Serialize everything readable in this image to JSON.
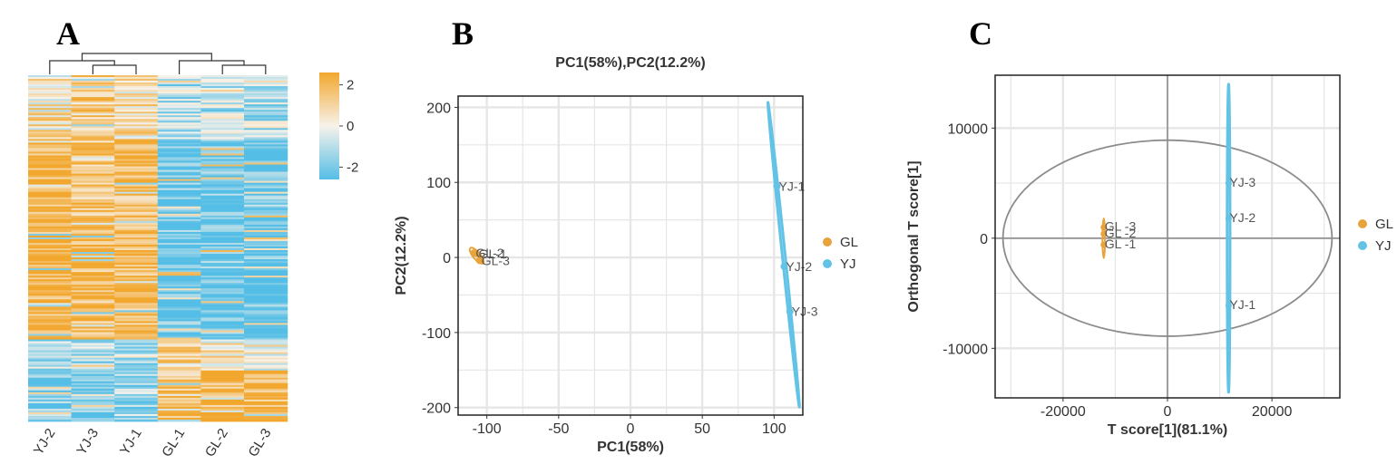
{
  "panels": {
    "a": {
      "letter": "A"
    },
    "b": {
      "letter": "B"
    },
    "c": {
      "letter": "C"
    }
  },
  "colors": {
    "gl": "#E8A33A",
    "yj": "#62C3E6",
    "heat_high": "#F2A72E",
    "heat_mid": "#F7F2EA",
    "heat_low": "#55BEE6",
    "grid": "#e6e6e6",
    "ellipse": "#8c8c8c"
  },
  "chart_data": [
    {
      "type": "heatmap",
      "columns": [
        "YJ-2",
        "YJ-3",
        "YJ-1",
        "GL-1",
        "GL-2",
        "GL-3"
      ],
      "colorbar": {
        "ticks": [
          "2",
          "0",
          "-2"
        ],
        "values": [
          2,
          0,
          -2
        ],
        "range": [
          -2.6,
          2.6
        ]
      },
      "dendrogram": "YJ-2,(YJ-3,YJ-1) | GL-1,(GL-2,GL-3)"
    },
    {
      "type": "scatter",
      "title": "PC1(58%),PC2(12.2%)",
      "xlabel": "PC1(58%)",
      "ylabel": "PC2(12.2%)",
      "xlim": [
        -120,
        120
      ],
      "ylim": [
        -210,
        215
      ],
      "xticks": [
        -100,
        -50,
        0,
        50,
        100
      ],
      "yticks": [
        -200,
        -100,
        0,
        100,
        200
      ],
      "grid": true,
      "legend": "right",
      "series": [
        {
          "name": "GL",
          "points": [
            {
              "label": "GL-1",
              "x": -107,
              "y": 5
            },
            {
              "label": "GL-2",
              "x": -109,
              "y": 6
            },
            {
              "label": "GL-3",
              "x": -105,
              "y": -4
            }
          ]
        },
        {
          "name": "YJ",
          "points": [
            {
              "label": "YJ-1",
              "x": 102,
              "y": 95
            },
            {
              "label": "YJ-2",
              "x": 107,
              "y": -12
            },
            {
              "label": "YJ-3",
              "x": 111,
              "y": -72
            }
          ]
        }
      ]
    },
    {
      "type": "scatter",
      "xlabel": "T score[1](81.1%)",
      "ylabel": "Orthogonal T score[1]",
      "xlim": [
        -33000,
        33000
      ],
      "ylim": [
        -14500,
        14800
      ],
      "xticks": [
        -20000,
        0,
        20000
      ],
      "yticks": [
        -10000,
        0,
        10000
      ],
      "grid": true,
      "legend": "right",
      "series": [
        {
          "name": "GL",
          "points": [
            {
              "label": "GL -3",
              "x": -12200,
              "y": 1000
            },
            {
              "label": "GL -2",
              "x": -12200,
              "y": 400
            },
            {
              "label": "GL -1",
              "x": -12200,
              "y": -600
            }
          ]
        },
        {
          "name": "YJ",
          "points": [
            {
              "label": "YJ-3",
              "x": 11700,
              "y": 5000
            },
            {
              "label": "YJ-2",
              "x": 11700,
              "y": 1800
            },
            {
              "label": "YJ-1",
              "x": 11700,
              "y": -6100
            }
          ]
        }
      ]
    }
  ]
}
